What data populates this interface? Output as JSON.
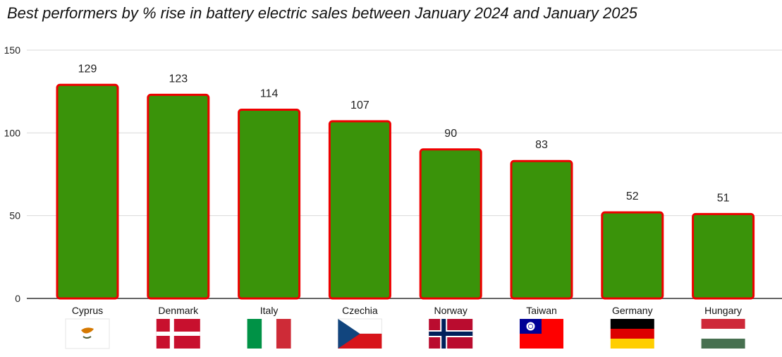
{
  "chart_data": {
    "type": "bar",
    "title": "Best performers by % rise in battery electric sales between January 2024 and January 2025",
    "xlabel": "",
    "ylabel": "",
    "ylim": [
      0,
      150
    ],
    "yticks": [
      0,
      50,
      100,
      150
    ],
    "grid": true,
    "categories": [
      "Cyprus",
      "Denmark",
      "Italy",
      "Czechia",
      "Norway",
      "Taiwan",
      "Germany",
      "Hungary"
    ],
    "values": [
      129,
      123,
      114,
      107,
      90,
      83,
      52,
      51
    ],
    "flag_icons": [
      "cyprus-flag-icon",
      "denmark-flag-icon",
      "italy-flag-icon",
      "czechia-flag-icon",
      "norway-flag-icon",
      "taiwan-flag-icon",
      "germany-flag-icon",
      "hungary-flag-icon"
    ],
    "colors": {
      "bar_fill": "#3a930a",
      "bar_outline": "#ee0000",
      "grid": "#d9d9d9",
      "axis": "#333333"
    }
  }
}
